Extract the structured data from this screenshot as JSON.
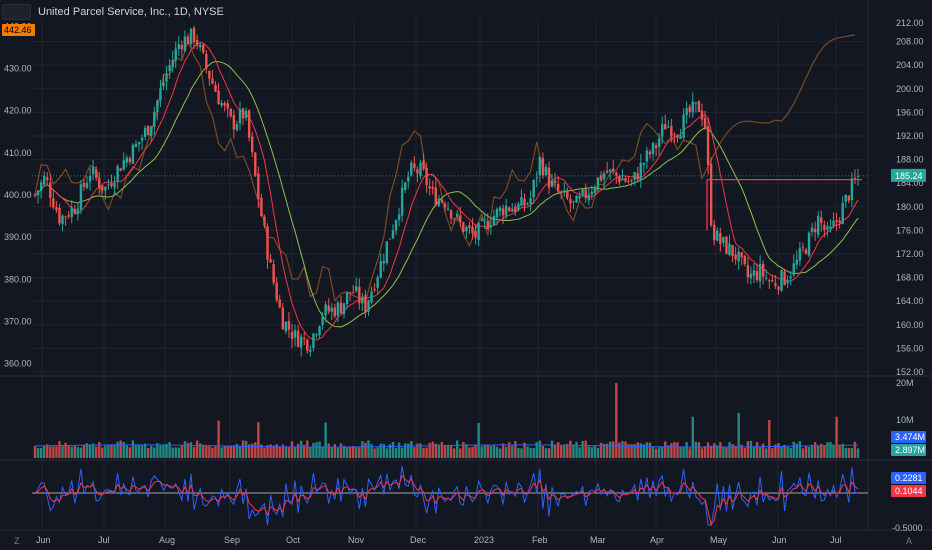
{
  "title": "United Parcel Service, Inc., 1D, NYSE",
  "left_axis": {
    "ticks": [
      "440.00",
      "430.00",
      "420.00",
      "410.00",
      "400.00",
      "390.00",
      "380.00",
      "370.00",
      "360.00"
    ],
    "badge": "442.46",
    "badge_color": "#f57c00"
  },
  "right_axis": {
    "ticks": [
      "208.00",
      "204.00",
      "200.00",
      "196.00",
      "192.00",
      "188.00",
      "184.00",
      "180.00",
      "176.00",
      "172.00",
      "168.00",
      "164.00",
      "160.00",
      "156.00",
      "152.00"
    ],
    "top_tick": "212.00",
    "last_price": "185.24",
    "last_price_color": "#26a69a"
  },
  "volume_pane": {
    "ticks": [
      "20M",
      "10M"
    ],
    "vol_label": "3.474M",
    "vol_label_color": "#2962ff",
    "ma_label": "2.897M",
    "ma_label_color": "#26a69a"
  },
  "osc_pane": {
    "tick": "-0.5000",
    "blue_label": "0.2281",
    "blue_color": "#2962ff",
    "red_label": "0.1044",
    "red_color": "#f23645"
  },
  "x_axis": {
    "labels": [
      "Jun",
      "Jul",
      "Aug",
      "Sep",
      "Oct",
      "Nov",
      "Dec",
      "2023",
      "Feb",
      "Mar",
      "Apr",
      "May",
      "Jun",
      "Jul"
    ]
  },
  "corner_left": "Z",
  "corner_right": "A",
  "colors": {
    "up": "#26a69a",
    "down": "#ef5350",
    "ma_fast": "#f23645",
    "ma_slow": "#8bc34a",
    "compare": "#7a4a22",
    "level": "#f23645",
    "grid": "#1f2430",
    "background": "#131722"
  },
  "chart_data": {
    "type": "candlestick",
    "title": "United Parcel Service, Inc., 1D, NYSE",
    "y_right_range": [
      152,
      212
    ],
    "y_left_range": [
      358,
      442
    ],
    "x_months": [
      "Jun",
      "Jul",
      "Aug",
      "Sep",
      "Oct",
      "Nov",
      "Dec",
      "2023",
      "Feb",
      "Mar",
      "Apr",
      "May",
      "Jun",
      "Jul"
    ],
    "closes_approx": [
      {
        "month": "Jun",
        "close": 180
      },
      {
        "month": "Jul",
        "close": 184
      },
      {
        "month": "Aug",
        "close": 205
      },
      {
        "month": "Sep",
        "close": 193
      },
      {
        "month": "Oct",
        "close": 158
      },
      {
        "month": "Nov",
        "close": 165
      },
      {
        "month": "Dec",
        "close": 187
      },
      {
        "month": "2023",
        "close": 177
      },
      {
        "month": "Feb",
        "close": 185
      },
      {
        "month": "Mar",
        "close": 184
      },
      {
        "month": "Apr",
        "close": 195
      },
      {
        "month": "May",
        "close": 172
      },
      {
        "month": "Jun",
        "close": 168
      },
      {
        "month": "Jul",
        "close": 185.24
      }
    ],
    "horizontal_level": 184.6,
    "last_price": 185.24,
    "volume_scale_max": "20M"
  }
}
